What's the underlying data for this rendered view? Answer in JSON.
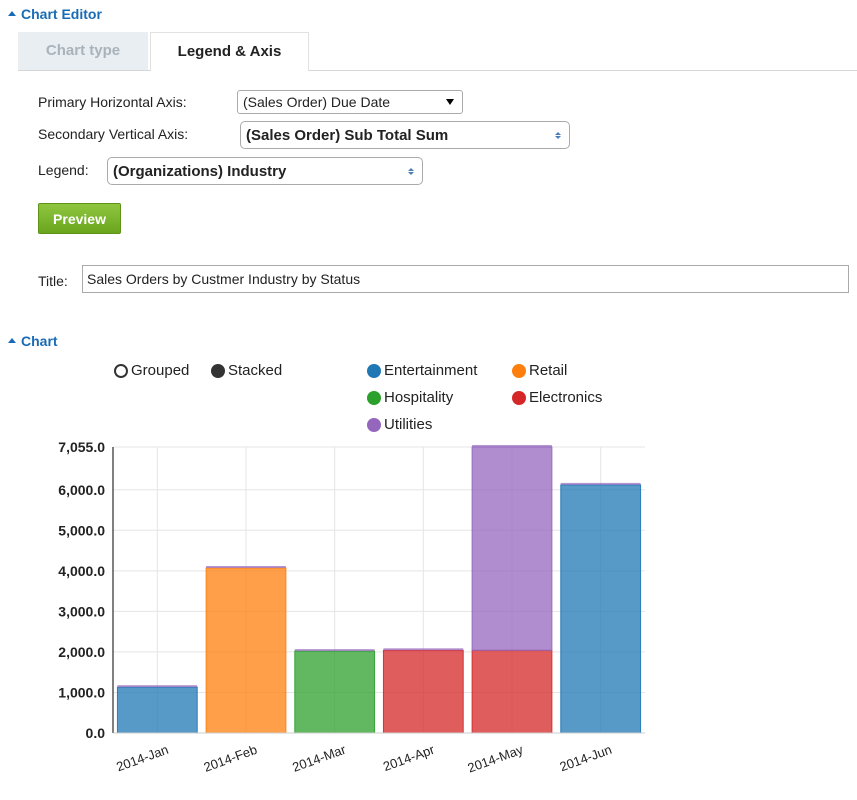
{
  "editor": {
    "header": "Chart Editor",
    "tabs": [
      {
        "label": "Chart type",
        "active": false
      },
      {
        "label": "Legend & Axis",
        "active": true
      }
    ],
    "primary_axis_label": "Primary Horizontal Axis:",
    "primary_axis_value": "(Sales Order) Due Date",
    "secondary_axis_label": "Secondary Vertical Axis:",
    "secondary_axis_value": "(Sales Order) Sub Total Sum",
    "legend_label": "Legend:",
    "legend_value": "(Organizations) Industry",
    "preview_label": "Preview",
    "title_label": "Title:",
    "title_value": "Sales Orders by Custmer Industry by Status"
  },
  "chart_section": {
    "header": "Chart",
    "mode_grouped": "Grouped",
    "mode_stacked": "Stacked",
    "mode_selected": "Stacked"
  },
  "colors": {
    "Entertainment": "#1f77b4",
    "Retail": "#ff7f0e",
    "Hospitality": "#2ca02c",
    "Electronics": "#d62728",
    "Utilities": "#9467bd"
  },
  "chart_data": {
    "type": "bar",
    "stacked": true,
    "categories": [
      "2014-Jan",
      "2014-Feb",
      "2014-Mar",
      "2014-Apr",
      "2014-May",
      "2014-Jun"
    ],
    "series": [
      {
        "name": "Entertainment",
        "values": [
          1130,
          0,
          0,
          0,
          0,
          6120
        ]
      },
      {
        "name": "Retail",
        "values": [
          0,
          4070,
          0,
          0,
          0,
          0
        ]
      },
      {
        "name": "Hospitality",
        "values": [
          0,
          0,
          2020,
          0,
          0,
          0
        ]
      },
      {
        "name": "Electronics",
        "values": [
          0,
          0,
          0,
          2040,
          2040,
          0
        ]
      },
      {
        "name": "Utilities",
        "values": [
          0,
          0,
          0,
          0,
          5015,
          0
        ]
      }
    ],
    "ylim": [
      0,
      7055
    ],
    "yticks": [
      "0.0",
      "1,000.0",
      "2,000.0",
      "3,000.0",
      "4,000.0",
      "5,000.0",
      "6,000.0",
      "7,055.0"
    ],
    "ytick_values": [
      0,
      1000,
      2000,
      3000,
      4000,
      5000,
      6000,
      7055
    ],
    "grid": true,
    "legend_position": "top"
  }
}
